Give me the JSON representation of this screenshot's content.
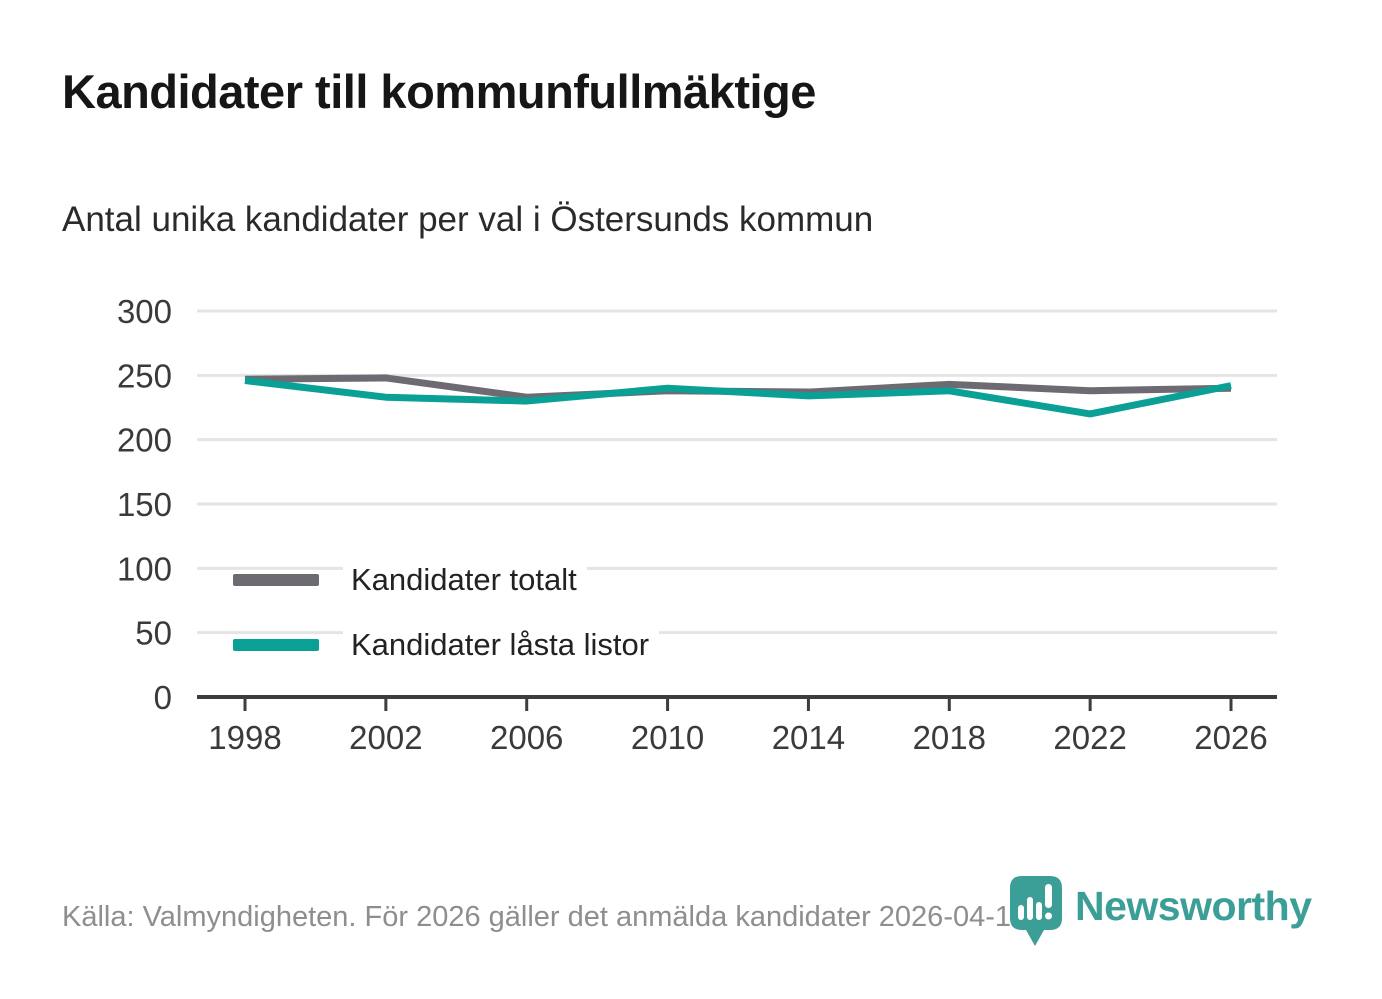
{
  "header": {
    "title": "Kandidater till kommunfullmäktige",
    "subtitle": "Antal unika kandidater per val i Östersunds kommun"
  },
  "chart_data": {
    "type": "line",
    "x": [
      1998,
      2002,
      2006,
      2010,
      2014,
      2018,
      2022,
      2026
    ],
    "series": [
      {
        "name": "Kandidater totalt",
        "color": "#6e6a71",
        "values": [
          247,
          248,
          233,
          238,
          237,
          243,
          238,
          240
        ]
      },
      {
        "name": "Kandidater låsta listor",
        "color": "#0aa096",
        "values": [
          246,
          233,
          230,
          240,
          234,
          238,
          220,
          242
        ]
      }
    ],
    "title": "Kandidater till kommunfullmäktige",
    "subtitle": "Antal unika kandidater per val i Östersunds kommun",
    "xlabel": "",
    "ylabel": "",
    "ylim": [
      0,
      300
    ],
    "ytick_step": 50,
    "grid": "horizontal",
    "legend_position": "inside-left"
  },
  "footer": {
    "source": "Källa: Valmyndigheten. För 2026 gäller det anmälda kandidater 2026-04-10.",
    "brand": "Newsworthy"
  },
  "colors": {
    "series_total": "#6e6a71",
    "series_locked_lists": "#0aa096",
    "brand_teal": "#3b9e97",
    "gridline": "#e4e4e4",
    "axis": "#3d3d3d"
  }
}
